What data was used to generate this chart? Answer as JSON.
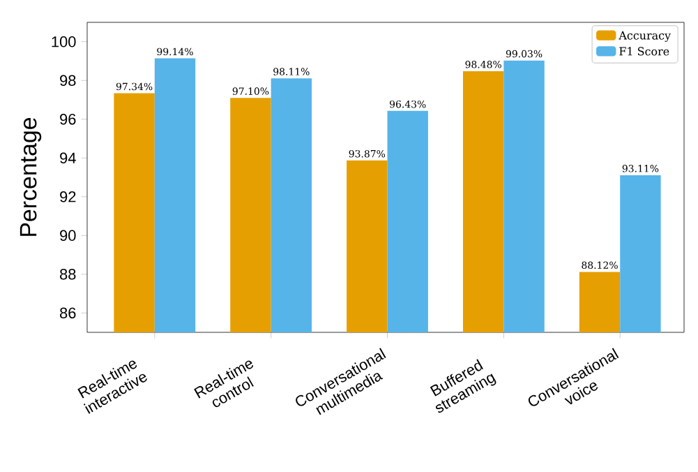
{
  "chart_data": {
    "type": "bar",
    "ylabel": "Percentage",
    "categories": [
      "Real-time interactive",
      "Real-time control",
      "Conversational multimedia",
      "Buffered streaming",
      "Conversational voice"
    ],
    "series": [
      {
        "name": "Accuracy",
        "color": "#e69f00",
        "values": [
          97.34,
          97.1,
          93.87,
          98.48,
          88.12
        ],
        "value_labels": [
          "97.34%",
          "97.10%",
          "93.87%",
          "98.48%",
          "88.12%"
        ]
      },
      {
        "name": "F1 Score",
        "color": "#56b4e9",
        "values": [
          99.14,
          98.11,
          96.43,
          99.03,
          93.11
        ],
        "value_labels": [
          "99.14%",
          "98.11%",
          "96.43%",
          "99.03%",
          "93.11%"
        ]
      }
    ],
    "ylim": [
      85,
      101
    ],
    "yticks": [
      86,
      88,
      90,
      92,
      94,
      96,
      98,
      100
    ],
    "legend": "top right"
  }
}
